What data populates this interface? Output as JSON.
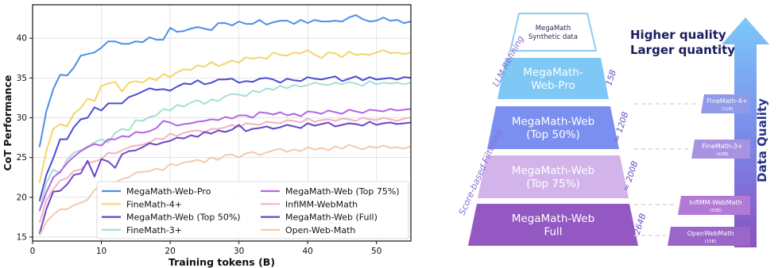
{
  "chart_data": {
    "type": "line",
    "xlabel": "Training tokens (B)",
    "ylabel": "CoT Performance",
    "xlim": [
      0,
      55
    ],
    "ylim": [
      14.5,
      44.2
    ],
    "x_ticks": [
      "0",
      "10",
      "20",
      "30",
      "40",
      "50"
    ],
    "y_ticks": [
      "15",
      "20",
      "25",
      "30",
      "35",
      "40"
    ],
    "grid": true,
    "legend_placement": "bottom-right",
    "x": [
      1,
      2,
      3,
      4,
      5,
      6,
      7,
      8,
      9,
      10,
      11,
      12,
      13,
      14,
      15,
      16,
      17,
      18,
      19,
      20,
      21,
      22,
      23,
      24,
      25,
      26,
      27,
      28,
      29,
      30,
      31,
      32,
      33,
      34,
      35,
      36,
      37,
      38,
      39,
      40,
      41,
      42,
      43,
      44,
      45,
      46,
      47,
      48,
      49,
      50,
      51,
      52,
      53,
      54,
      55
    ],
    "series": [
      {
        "name": "MegaMath-Web-Pro",
        "color": "#4a90e8",
        "values": [
          26.3,
          30.8,
          33.6,
          35.4,
          35.3,
          36.3,
          37.8,
          38.0,
          38.2,
          38.8,
          39.6,
          39.6,
          39.3,
          39.3,
          39.6,
          39.5,
          40.1,
          39.8,
          39.8,
          41.3,
          40.8,
          40.9,
          41.2,
          41.4,
          41.2,
          41.0,
          41.9,
          41.9,
          41.6,
          42.1,
          41.8,
          41.8,
          42.3,
          41.7,
          42.0,
          42.2,
          42.2,
          41.8,
          42.3,
          41.9,
          42.3,
          42.1,
          42.1,
          42.2,
          42.1,
          42.6,
          42.9,
          42.4,
          42.1,
          42.2,
          42.6,
          42.2,
          42.3,
          41.9,
          42.1
        ]
      },
      {
        "name": "FineMath-4+",
        "color": "#f5d46a",
        "values": [
          21.8,
          25.8,
          28.6,
          29.2,
          28.9,
          30.5,
          31.2,
          32.4,
          32.1,
          34.0,
          34.3,
          34.5,
          33.3,
          34.4,
          34.6,
          34.4,
          35.0,
          34.7,
          35.5,
          35.1,
          35.7,
          36.1,
          36.0,
          36.6,
          36.4,
          37.0,
          36.5,
          36.8,
          37.2,
          36.9,
          37.6,
          37.4,
          37.6,
          37.4,
          38.2,
          37.9,
          37.8,
          38.2,
          38.1,
          38.5,
          37.9,
          37.5,
          38.2,
          38.1,
          37.6,
          38.3,
          37.9,
          38.0,
          37.9,
          38.2,
          38.5,
          38.1,
          38.2,
          38.0,
          38.2
        ]
      },
      {
        "name": "MegaMath-Web (Top 50%)",
        "color": "#4b4bd4",
        "values": [
          19.5,
          22.8,
          24.9,
          27.3,
          27.3,
          28.8,
          29.8,
          30.0,
          31.3,
          30.9,
          31.8,
          31.8,
          31.8,
          32.6,
          32.9,
          33.3,
          33.7,
          33.5,
          33.6,
          33.4,
          33.9,
          34.3,
          34.2,
          34.7,
          34.2,
          34.4,
          34.8,
          34.8,
          34.9,
          34.4,
          34.6,
          34.5,
          34.9,
          35.0,
          34.8,
          34.4,
          34.9,
          34.7,
          34.6,
          35.1,
          34.9,
          34.8,
          35.0,
          35.2,
          34.6,
          34.9,
          35.2,
          34.7,
          35.1,
          34.8,
          34.9,
          35.0,
          34.8,
          35.1,
          35.0
        ]
      },
      {
        "name": "FineMath-3+",
        "color": "#a6dfd4",
        "values": [
          18.2,
          21.8,
          23.5,
          23.0,
          24.7,
          25.6,
          25.9,
          26.4,
          26.9,
          27.3,
          26.9,
          28.1,
          28.6,
          28.4,
          29.7,
          29.6,
          30.1,
          30.3,
          31.1,
          30.9,
          31.6,
          31.4,
          31.9,
          32.2,
          31.7,
          32.3,
          32.1,
          32.7,
          33.0,
          32.9,
          32.7,
          33.4,
          33.2,
          33.7,
          33.5,
          34.0,
          33.7,
          34.1,
          33.9,
          34.1,
          34.4,
          34.2,
          34.1,
          34.4,
          34.2,
          34.5,
          34.3,
          34.0,
          34.6,
          34.2,
          34.4,
          34.3,
          34.4,
          34.2,
          34.4
        ]
      },
      {
        "name": "MegaMath-Web (Top 75%)",
        "color": "#b366e6",
        "values": [
          18.3,
          20.6,
          22.5,
          23.2,
          24.3,
          25.1,
          25.8,
          26.3,
          26.7,
          26.5,
          27.3,
          27.3,
          27.7,
          27.6,
          28.2,
          28.1,
          28.3,
          28.7,
          29.6,
          29.4,
          29.0,
          29.2,
          29.3,
          29.5,
          29.6,
          29.8,
          29.7,
          30.1,
          29.9,
          30.3,
          30.3,
          30.0,
          30.7,
          30.6,
          30.4,
          30.7,
          30.3,
          30.5,
          30.2,
          30.8,
          30.7,
          30.5,
          30.9,
          30.7,
          30.5,
          31.0,
          30.8,
          30.6,
          31.0,
          30.9,
          30.8,
          31.1,
          30.9,
          31.0,
          31.1
        ]
      },
      {
        "name": "InfiMM-WebMath",
        "color": "#f2b3c3",
        "values": [
          16.8,
          19.6,
          21.0,
          22.1,
          22.4,
          23.3,
          23.5,
          24.3,
          24.5,
          24.8,
          25.6,
          25.5,
          25.9,
          26.3,
          26.5,
          26.6,
          26.9,
          27.4,
          27.3,
          28.0,
          27.7,
          28.1,
          28.3,
          28.4,
          28.2,
          28.6,
          28.6,
          28.8,
          29.1,
          28.8,
          29.3,
          29.2,
          29.1,
          29.5,
          29.4,
          29.3,
          29.7,
          29.6,
          29.4,
          29.9,
          29.5,
          29.7,
          29.8,
          29.6,
          29.9,
          29.8,
          29.6,
          30.0,
          29.8,
          29.7,
          30.0,
          29.8,
          29.6,
          29.9,
          30.0
        ]
      },
      {
        "name": "MegaMath-Web (Full)",
        "color": "#6a48c8",
        "values": [
          15.4,
          18.5,
          20.7,
          20.8,
          21.6,
          22.8,
          23.0,
          24.6,
          22.6,
          24.8,
          24.5,
          23.7,
          25.4,
          25.8,
          25.9,
          26.3,
          26.8,
          26.6,
          26.9,
          27.1,
          27.5,
          27.4,
          27.8,
          27.6,
          28.2,
          28.0,
          28.4,
          28.2,
          28.5,
          29.1,
          28.3,
          28.6,
          28.7,
          28.9,
          28.6,
          28.8,
          29.1,
          28.9,
          28.7,
          29.3,
          29.0,
          29.2,
          29.4,
          28.9,
          29.1,
          29.3,
          29.2,
          29.0,
          29.5,
          29.1,
          29.3,
          29.4,
          29.2,
          29.3,
          29.4
        ]
      },
      {
        "name": "Open-Web-Math",
        "color": "#f5c9a8",
        "values": [
          15.2,
          16.9,
          17.8,
          18.5,
          18.5,
          19.0,
          19.3,
          19.7,
          20.9,
          21.5,
          21.6,
          21.9,
          22.3,
          22.5,
          23.1,
          23.2,
          23.3,
          23.6,
          23.4,
          24.2,
          24.0,
          24.4,
          24.5,
          24.7,
          24.4,
          25.0,
          24.7,
          25.3,
          25.4,
          25.0,
          25.5,
          25.7,
          25.3,
          25.6,
          25.9,
          26.1,
          25.7,
          26.0,
          25.8,
          26.3,
          26.0,
          26.2,
          25.9,
          26.4,
          26.1,
          26.6,
          26.3,
          26.0,
          26.4,
          26.2,
          26.5,
          26.2,
          26.3,
          26.1,
          26.4
        ]
      }
    ]
  },
  "pyramid": {
    "levels": [
      {
        "label_lines": [
          "MegaMath",
          "Synthetic data"
        ],
        "fill": "#ffffff",
        "stroke": "#8fcdf2",
        "text_color": "#2a2a55"
      },
      {
        "label_lines": [
          "MegaMath-",
          "Web-Pro"
        ],
        "size": "15B",
        "fill": "#7fc8f5",
        "stroke": "none",
        "text_color": "#ffffff"
      },
      {
        "label_lines": [
          "MegaMath-Web",
          "(Top 50%)"
        ],
        "size": "≈ 120B",
        "fill": "#7b8ff0",
        "stroke": "none",
        "text_color": "#ffffff"
      },
      {
        "label_lines": [
          "MegaMath-Web",
          "(Top 75%)"
        ],
        "size": "≈ 200B",
        "fill": "#d2b4ea",
        "stroke": "none",
        "text_color": "#ffffff"
      },
      {
        "label_lines": [
          "MegaMath-Web",
          "Full"
        ],
        "size": "264B",
        "fill": "#9358c2",
        "stroke": "none",
        "text_color": "#ffffff"
      }
    ],
    "side_labels": {
      "llm": "LLM Refining",
      "score": "Score-based Filtering"
    },
    "headline": [
      "Higher quality",
      "Larger quantity"
    ],
    "arrow_label": "Data Quality",
    "reference_datasets": [
      {
        "name": "FineMath-4+",
        "size": "(11B)",
        "fill": "#8f9ae8"
      },
      {
        "name": "FineMath-3+",
        "size": "(42B)",
        "fill": "#a893e0"
      },
      {
        "name": "InfiMM-WebMath",
        "size": "(55B)",
        "fill": "#b27ad6"
      },
      {
        "name": "OpenWebMath",
        "size": "(15B)",
        "fill": "#9a66c8"
      }
    ]
  }
}
